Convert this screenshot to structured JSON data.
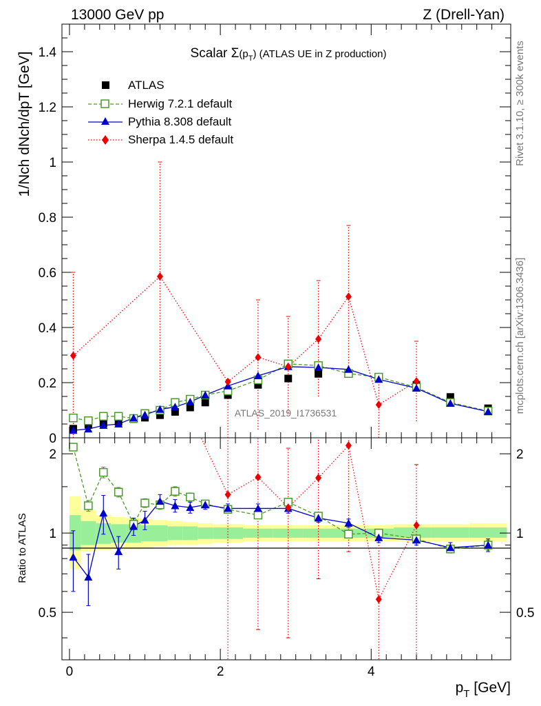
{
  "header": {
    "left": "13000 GeV pp",
    "right": "Z (Drell-Yan)"
  },
  "side_text": {
    "rivet": "Rivet 3.1.10, ≥ 300k events",
    "mcplots": "mcplots.cern.ch [arXiv:1306.3436]"
  },
  "watermark": "ATLAS_2019_I1736531",
  "colors": {
    "atlas": "#000000",
    "herwig": "#4a9a2a",
    "pythia": "#0000cc",
    "sherpa": "#ee0000",
    "band_inner": "#99ee99",
    "band_outer": "#ffff99"
  },
  "chart_data": [
    {
      "type": "scatter",
      "title": "Scalar Σ(pT) (ATLAS UE in Z production)",
      "title_parts": {
        "pre": "Scalar ",
        "sym": "Σ",
        "arg_open": "(p",
        "arg_sub": "T",
        "arg_close": ")",
        "post": " (ATLAS UE in Z production)"
      },
      "ylabel": "1/Nch dNch/dpT [GeV]",
      "ylim": [
        0,
        1.5
      ],
      "xlim": [
        -0.1,
        5.85
      ],
      "yticks": [
        0,
        0.2,
        0.4,
        0.6,
        0.8,
        1,
        1.2,
        1.4
      ],
      "ytick_labels": [
        "0",
        "0.2",
        "0.4",
        "0.6",
        "0.8",
        "1",
        "1.2",
        "1.4"
      ],
      "x": [
        0.05,
        0.25,
        0.45,
        0.65,
        0.85,
        1.0,
        1.2,
        1.4,
        1.6,
        1.8,
        2.1,
        2.5,
        2.9,
        3.3,
        3.7,
        4.1,
        4.6,
        5.05,
        5.55
      ],
      "series": [
        {
          "name": "ATLAS",
          "key": "atlas",
          "values": [
            0.033,
            0.047,
            0.052,
            0.058,
            0.068,
            0.073,
            0.082,
            0.094,
            0.11,
            0.128,
            0.155,
            0.192,
            0.215,
            0.232,
            0.233,
            0.22,
            0.192,
            0.148,
            0.107
          ]
        },
        {
          "name": "Herwig 7.2.1 default",
          "key": "herwig",
          "values": [
            0.072,
            0.062,
            0.078,
            0.078,
            0.07,
            0.088,
            0.1,
            0.128,
            0.14,
            0.155,
            0.17,
            0.21,
            0.268,
            0.262,
            0.233,
            0.22,
            0.183,
            0.128,
            0.097
          ]
        },
        {
          "name": "Pythia 8.308 default",
          "key": "pythia",
          "values": [
            0.027,
            0.032,
            0.045,
            0.05,
            0.072,
            0.083,
            0.103,
            0.112,
            0.13,
            0.155,
            0.188,
            0.225,
            0.258,
            0.255,
            0.248,
            0.212,
            0.18,
            0.125,
            0.095
          ]
        },
        {
          "name": "Sherpa 1.4.5 default",
          "key": "sherpa",
          "values": [
            0.298,
            null,
            null,
            null,
            null,
            null,
            0.585,
            null,
            null,
            null,
            0.203,
            0.292,
            0.258,
            0.358,
            0.512,
            0.12,
            0.205,
            null,
            null
          ]
        }
      ],
      "sherpa_errors": [
        {
          "x": 0.05,
          "low": 0.0,
          "high": 0.6
        },
        {
          "x": 1.2,
          "low": 0.17,
          "high": 1.0
        },
        {
          "x": 2.1,
          "low": 0.0,
          "high": 0.21
        },
        {
          "x": 2.5,
          "low": 0.03,
          "high": 0.5
        },
        {
          "x": 2.9,
          "low": 0.09,
          "high": 0.44
        },
        {
          "x": 3.3,
          "low": 0.15,
          "high": 0.57
        },
        {
          "x": 3.7,
          "low": 0.26,
          "high": 0.77
        },
        {
          "x": 4.1,
          "low": 0.0,
          "high": 0.22
        },
        {
          "x": 4.6,
          "low": 0.06,
          "high": 0.35
        }
      ]
    },
    {
      "type": "scatter",
      "title": "",
      "ylabel": "Ratio to ATLAS",
      "xlabel": "pT [GeV]",
      "xlabel_parts": {
        "base": "p",
        "sub": "T",
        "unit": " [GeV]"
      },
      "ylim": [
        0.33,
        2.3
      ],
      "xlim": [
        -0.1,
        5.85
      ],
      "yticks": [
        0.5,
        1,
        2
      ],
      "ytick_labels": [
        "0.5",
        "1",
        "2"
      ],
      "xticks": [
        0,
        2,
        4
      ],
      "xtick_labels": [
        "0",
        "2",
        "4"
      ],
      "x": [
        0.05,
        0.25,
        0.45,
        0.65,
        0.85,
        1.0,
        1.2,
        1.4,
        1.6,
        1.8,
        2.1,
        2.5,
        2.9,
        3.3,
        3.7,
        4.1,
        4.6,
        5.05,
        5.55
      ],
      "bands": [
        {
          "x0": 0.0,
          "x1": 0.15,
          "inner": [
            0.86,
            1.17
          ],
          "outer": [
            0.73,
            1.38
          ]
        },
        {
          "x0": 0.15,
          "x1": 0.35,
          "inner": [
            0.9,
            1.11
          ],
          "outer": [
            0.85,
            1.22
          ]
        },
        {
          "x0": 0.35,
          "x1": 0.55,
          "inner": [
            0.91,
            1.09
          ],
          "outer": [
            0.86,
            1.17
          ]
        },
        {
          "x0": 0.55,
          "x1": 0.75,
          "inner": [
            0.92,
            1.08
          ],
          "outer": [
            0.87,
            1.15
          ]
        },
        {
          "x0": 0.75,
          "x1": 0.95,
          "inner": [
            0.92,
            1.08
          ],
          "outer": [
            0.87,
            1.14
          ]
        },
        {
          "x0": 0.95,
          "x1": 1.1,
          "inner": [
            0.93,
            1.07
          ],
          "outer": [
            0.88,
            1.13
          ]
        },
        {
          "x0": 1.1,
          "x1": 1.3,
          "inner": [
            0.93,
            1.07
          ],
          "outer": [
            0.89,
            1.12
          ]
        },
        {
          "x0": 1.3,
          "x1": 1.5,
          "inner": [
            0.94,
            1.06
          ],
          "outer": [
            0.9,
            1.11
          ]
        },
        {
          "x0": 1.5,
          "x1": 1.7,
          "inner": [
            0.94,
            1.06
          ],
          "outer": [
            0.9,
            1.1
          ]
        },
        {
          "x0": 1.7,
          "x1": 1.9,
          "inner": [
            0.95,
            1.05
          ],
          "outer": [
            0.91,
            1.09
          ]
        },
        {
          "x0": 1.9,
          "x1": 2.3,
          "inner": [
            0.95,
            1.05
          ],
          "outer": [
            0.92,
            1.08
          ]
        },
        {
          "x0": 2.3,
          "x1": 2.7,
          "inner": [
            0.96,
            1.04
          ],
          "outer": [
            0.93,
            1.07
          ]
        },
        {
          "x0": 2.7,
          "x1": 3.1,
          "inner": [
            0.96,
            1.04
          ],
          "outer": [
            0.93,
            1.07
          ]
        },
        {
          "x0": 3.1,
          "x1": 3.5,
          "inner": [
            0.96,
            1.04
          ],
          "outer": [
            0.93,
            1.07
          ]
        },
        {
          "x0": 3.5,
          "x1": 3.9,
          "inner": [
            0.96,
            1.04
          ],
          "outer": [
            0.93,
            1.07
          ]
        },
        {
          "x0": 3.9,
          "x1": 4.3,
          "inner": [
            0.96,
            1.04
          ],
          "outer": [
            0.93,
            1.07
          ]
        },
        {
          "x0": 4.3,
          "x1": 4.8,
          "inner": [
            0.96,
            1.05
          ],
          "outer": [
            0.93,
            1.08
          ]
        },
        {
          "x0": 4.8,
          "x1": 5.3,
          "inner": [
            0.96,
            1.05
          ],
          "outer": [
            0.93,
            1.08
          ]
        },
        {
          "x0": 5.3,
          "x1": 5.8,
          "inner": [
            0.96,
            1.05
          ],
          "outer": [
            0.93,
            1.09
          ]
        }
      ],
      "series": [
        {
          "name": "Herwig 7.2.1 default",
          "key": "herwig",
          "values": [
            2.12,
            1.27,
            1.7,
            1.43,
            1.08,
            1.3,
            1.28,
            1.44,
            1.37,
            1.29,
            1.23,
            1.17,
            1.31,
            1.16,
            0.99,
            1.0,
            0.95,
            0.87,
            0.9
          ],
          "errors": [
            0.04,
            0.06,
            0.08,
            0.06,
            0.05,
            0.05,
            0.05,
            0.06,
            0.05,
            0.04,
            0.03,
            0.03,
            0.02,
            0.02,
            0.02,
            0.03,
            0.03,
            0.03,
            0.04
          ]
        },
        {
          "name": "Pythia 8.308 default",
          "key": "pythia",
          "values": [
            0.81,
            0.68,
            1.19,
            0.85,
            1.06,
            1.12,
            1.32,
            1.27,
            1.25,
            1.28,
            1.24,
            1.24,
            1.24,
            1.14,
            1.09,
            0.96,
            0.94,
            0.88,
            0.9
          ],
          "errors": [
            0.21,
            0.15,
            0.2,
            0.12,
            0.08,
            0.09,
            0.08,
            0.07,
            0.06,
            0.05,
            0.05,
            0.05,
            0.05,
            0.04,
            0.04,
            0.04,
            0.04,
            0.04,
            0.05
          ]
        },
        {
          "name": "Sherpa 1.4.5 default",
          "key": "sherpa",
          "values": [
            null,
            null,
            null,
            null,
            null,
            null,
            null,
            null,
            null,
            null,
            1.4,
            1.63,
            1.25,
            1.62,
            2.15,
            0.56,
            1.07,
            null,
            null
          ],
          "errors_low": [
            null,
            null,
            null,
            null,
            null,
            null,
            null,
            null,
            null,
            null,
            1.2,
            1.2,
            0.85,
            0.95,
            1.3,
            0.56,
            0.75,
            null,
            null
          ],
          "errors_high": [
            null,
            null,
            null,
            null,
            null,
            null,
            null,
            null,
            null,
            null,
            1.2,
            1.2,
            0.85,
            1.0,
            1.3,
            0.4,
            0.75,
            null,
            null
          ]
        }
      ]
    }
  ]
}
